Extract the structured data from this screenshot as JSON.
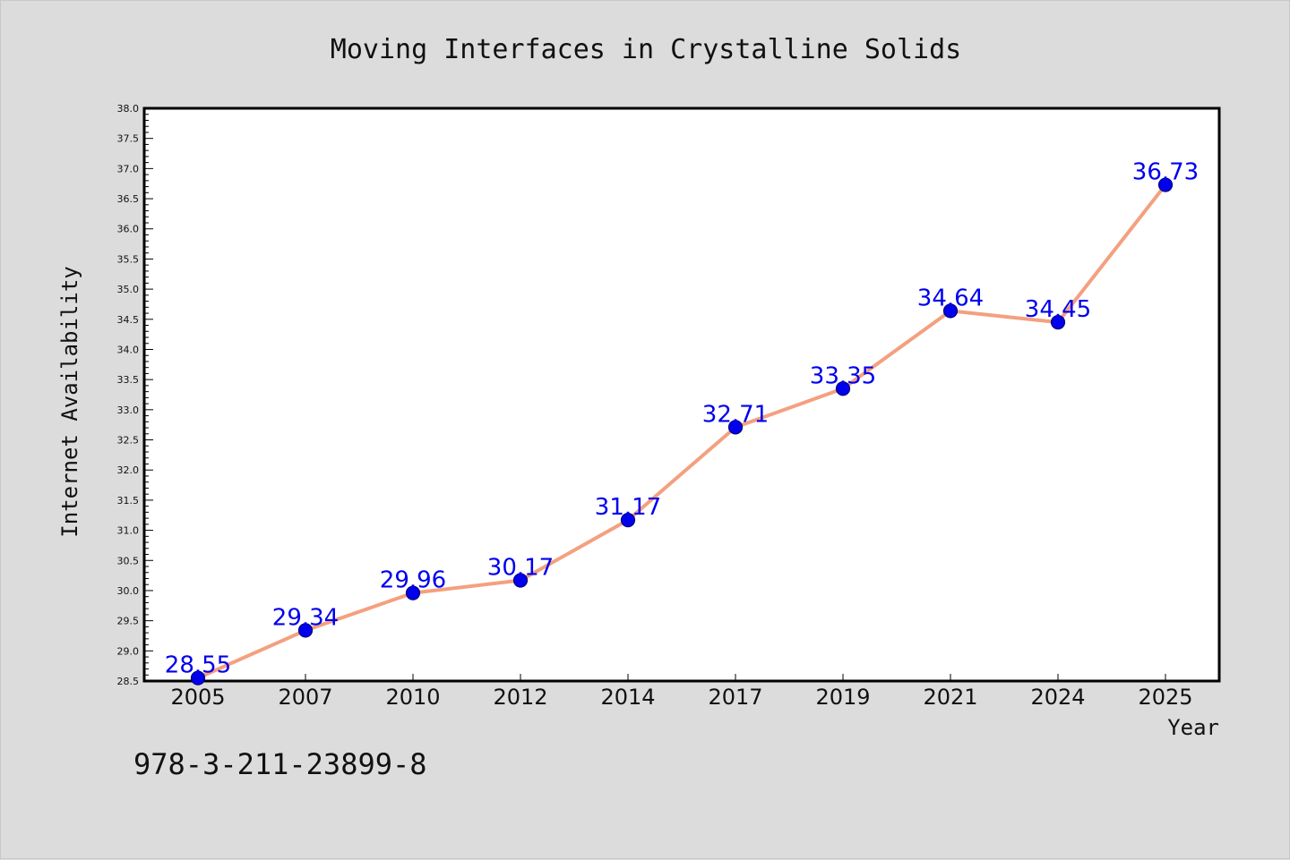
{
  "chart_data": {
    "type": "line",
    "title": "Moving Interfaces in Crystalline Solids",
    "xlabel": "Year",
    "ylabel": "Internet Availability",
    "categories": [
      "2005",
      "2007",
      "2010",
      "2012",
      "2014",
      "2017",
      "2019",
      "2021",
      "2024",
      "2025"
    ],
    "series": [
      {
        "values": [
          28.55,
          29.34,
          29.96,
          30.17,
          31.17,
          32.71,
          33.35,
          34.64,
          34.45,
          36.73
        ],
        "data_labels": [
          "28.55",
          "29.34",
          "29.96",
          "30.17",
          "31.17",
          "32.71",
          "33.35",
          "34.64",
          "34.45",
          "36.73"
        ]
      }
    ],
    "ylim": [
      28.5,
      38.0
    ],
    "yticks": [
      "28.5",
      "29.0",
      "29.5",
      "30.0",
      "30.5",
      "31.0",
      "31.5",
      "32.0",
      "32.5",
      "33.0",
      "33.5",
      "34.0",
      "34.5",
      "35.0",
      "35.5",
      "36.0",
      "36.5",
      "37.0",
      "37.5",
      "38.0"
    ],
    "grid": false,
    "legend": "none",
    "colors": {
      "line": "#f4a07f",
      "marker": "#0000ee",
      "marker_edge": "#000080",
      "data_label": "#0000ee",
      "plot_background": "#ffffff",
      "figure_background": "#dcdcdc",
      "axes_edge": "#000000"
    }
  },
  "footnote": "978-3-211-23899-8"
}
